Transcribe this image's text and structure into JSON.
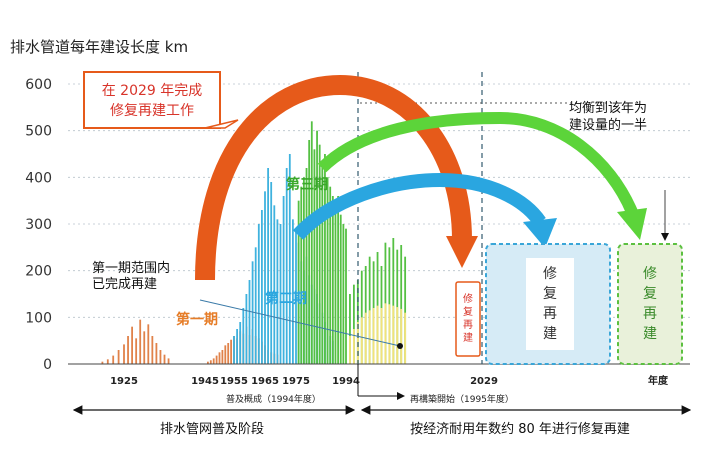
{
  "chart_data": {
    "type": "bar",
    "title": "排水管道每年建设长度 km",
    "ylim": [
      0,
      600
    ],
    "yticks": [
      "0",
      "100",
      "200",
      "300",
      "400",
      "500",
      "600"
    ],
    "xticks": [
      "1925",
      "1945",
      "1955",
      "1965",
      "1975",
      "1994",
      "2029"
    ],
    "xaxis_unit": "年度",
    "period_note_1": "普及概成（1994年度）",
    "period_note_2": "再構築開始（1995年度）",
    "series": [
      {
        "name": "第一期",
        "color": "#e0824a",
        "values": [
          {
            "x": 1921,
            "y": 5
          },
          {
            "x": 1922,
            "y": 10
          },
          {
            "x": 1923,
            "y": 18
          },
          {
            "x": 1924,
            "y": 30
          },
          {
            "x": 1925,
            "y": 42
          },
          {
            "x": 1926,
            "y": 60
          },
          {
            "x": 1927,
            "y": 80
          },
          {
            "x": 1928,
            "y": 55
          },
          {
            "x": 1929,
            "y": 95
          },
          {
            "x": 1930,
            "y": 70
          },
          {
            "x": 1931,
            "y": 85
          },
          {
            "x": 1932,
            "y": 60
          },
          {
            "x": 1933,
            "y": 45
          },
          {
            "x": 1934,
            "y": 30
          },
          {
            "x": 1935,
            "y": 20
          },
          {
            "x": 1936,
            "y": 12
          },
          {
            "x": 1946,
            "y": 5
          },
          {
            "x": 1947,
            "y": 8
          },
          {
            "x": 1948,
            "y": 12
          },
          {
            "x": 1949,
            "y": 18
          },
          {
            "x": 1950,
            "y": 25
          },
          {
            "x": 1951,
            "y": 30
          },
          {
            "x": 1952,
            "y": 40
          },
          {
            "x": 1953,
            "y": 45
          },
          {
            "x": 1954,
            "y": 52
          },
          {
            "x": 1955,
            "y": 60
          },
          {
            "x": 1956,
            "y": 55
          },
          {
            "x": 1957,
            "y": 70
          },
          {
            "x": 1958,
            "y": 65
          },
          {
            "x": 1959,
            "y": 80
          },
          {
            "x": 1960,
            "y": 62
          },
          {
            "x": 1961,
            "y": 75
          },
          {
            "x": 1962,
            "y": 60
          },
          {
            "x": 1963,
            "y": 55
          },
          {
            "x": 1964,
            "y": 48
          },
          {
            "x": 1965,
            "y": 40
          },
          {
            "x": 1966,
            "y": 30
          },
          {
            "x": 1967,
            "y": 25
          },
          {
            "x": 1968,
            "y": 22
          },
          {
            "x": 1969,
            "y": 20
          }
        ]
      },
      {
        "name": "第二期",
        "color": "#3fb2de",
        "values": [
          {
            "x": 1955,
            "y": 60
          },
          {
            "x": 1956,
            "y": 75
          },
          {
            "x": 1957,
            "y": 90
          },
          {
            "x": 1958,
            "y": 120
          },
          {
            "x": 1959,
            "y": 150
          },
          {
            "x": 1960,
            "y": 180
          },
          {
            "x": 1961,
            "y": 220
          },
          {
            "x": 1962,
            "y": 250
          },
          {
            "x": 1963,
            "y": 300
          },
          {
            "x": 1964,
            "y": 330
          },
          {
            "x": 1965,
            "y": 370
          },
          {
            "x": 1966,
            "y": 420
          },
          {
            "x": 1967,
            "y": 390
          },
          {
            "x": 1968,
            "y": 340
          },
          {
            "x": 1969,
            "y": 310
          },
          {
            "x": 1970,
            "y": 300
          },
          {
            "x": 1971,
            "y": 360
          },
          {
            "x": 1972,
            "y": 420
          },
          {
            "x": 1973,
            "y": 450
          },
          {
            "x": 1974,
            "y": 310
          },
          {
            "x": 1975,
            "y": 290
          },
          {
            "x": 1976,
            "y": 260
          },
          {
            "x": 1977,
            "y": 220
          },
          {
            "x": 1978,
            "y": 200
          },
          {
            "x": 1979,
            "y": 230
          },
          {
            "x": 1980,
            "y": 190
          },
          {
            "x": 1981,
            "y": 170
          },
          {
            "x": 1982,
            "y": 160
          },
          {
            "x": 1983,
            "y": 150
          },
          {
            "x": 1984,
            "y": 130
          },
          {
            "x": 1985,
            "y": 110
          },
          {
            "x": 1986,
            "y": 90
          },
          {
            "x": 1987,
            "y": 75
          },
          {
            "x": 1988,
            "y": 60
          },
          {
            "x": 1989,
            "y": 50
          }
        ]
      },
      {
        "name": "第三期",
        "color": "#55c043",
        "values": [
          {
            "x": 1976,
            "y": 350
          },
          {
            "x": 1977,
            "y": 380
          },
          {
            "x": 1978,
            "y": 400
          },
          {
            "x": 1979,
            "y": 420
          },
          {
            "x": 1980,
            "y": 480
          },
          {
            "x": 1981,
            "y": 520
          },
          {
            "x": 1982,
            "y": 460
          },
          {
            "x": 1983,
            "y": 500
          },
          {
            "x": 1984,
            "y": 470
          },
          {
            "x": 1985,
            "y": 430
          },
          {
            "x": 1986,
            "y": 450
          },
          {
            "x": 1987,
            "y": 400
          },
          {
            "x": 1988,
            "y": 380
          },
          {
            "x": 1989,
            "y": 360
          },
          {
            "x": 1990,
            "y": 340
          },
          {
            "x": 1991,
            "y": 360
          },
          {
            "x": 1992,
            "y": 320
          },
          {
            "x": 1993,
            "y": 300
          },
          {
            "x": 1994,
            "y": 290
          },
          {
            "x": 1995,
            "y": 150
          },
          {
            "x": 1996,
            "y": 170
          },
          {
            "x": 1997,
            "y": 180
          },
          {
            "x": 1998,
            "y": 200
          },
          {
            "x": 1999,
            "y": 210
          },
          {
            "x": 2000,
            "y": 230
          },
          {
            "x": 2001,
            "y": 220
          },
          {
            "x": 2002,
            "y": 240
          },
          {
            "x": 2003,
            "y": 210
          },
          {
            "x": 2004,
            "y": 260
          },
          {
            "x": 2005,
            "y": 250
          },
          {
            "x": 2006,
            "y": 270
          },
          {
            "x": 2007,
            "y": 245
          },
          {
            "x": 2008,
            "y": 255
          },
          {
            "x": 2009,
            "y": 230
          }
        ]
      },
      {
        "name": "已完成再建",
        "color": "#f2e27a",
        "values": [
          {
            "x": 1995,
            "y": 60
          },
          {
            "x": 1996,
            "y": 75
          },
          {
            "x": 1997,
            "y": 90
          },
          {
            "x": 1998,
            "y": 100
          },
          {
            "x": 1999,
            "y": 110
          },
          {
            "x": 2000,
            "y": 115
          },
          {
            "x": 2001,
            "y": 120
          },
          {
            "x": 2002,
            "y": 125
          },
          {
            "x": 2003,
            "y": 120
          },
          {
            "x": 2004,
            "y": 130
          },
          {
            "x": 2005,
            "y": 128
          },
          {
            "x": 2006,
            "y": 125
          },
          {
            "x": 2007,
            "y": 122
          },
          {
            "x": 2008,
            "y": 118
          },
          {
            "x": 2009,
            "y": 110
          }
        ]
      }
    ]
  },
  "annotations": {
    "callout_2029": "在 2029 年完成\n修复再建工作",
    "phase1_label": "第一期",
    "phase2_label": "第二期",
    "phase3_label": "第三期",
    "phase1_done": "第一期范围内\n已完成再建",
    "half_note": "均衡到该年为\n建设量的一半",
    "box1_text": "修\n复\n再\n建",
    "box2_text": "修\n复\n再\n建",
    "box3_text": "修\n复\n再\n建"
  },
  "bottom": {
    "left_label": "排水管网普及阶段",
    "right_label": "按经济耐用年数约 80 年进行修复再建"
  },
  "colors": {
    "orange": "#e65a1a",
    "blue": "#2aa6e0",
    "green": "#5cd43a",
    "red": "#d8342a"
  }
}
